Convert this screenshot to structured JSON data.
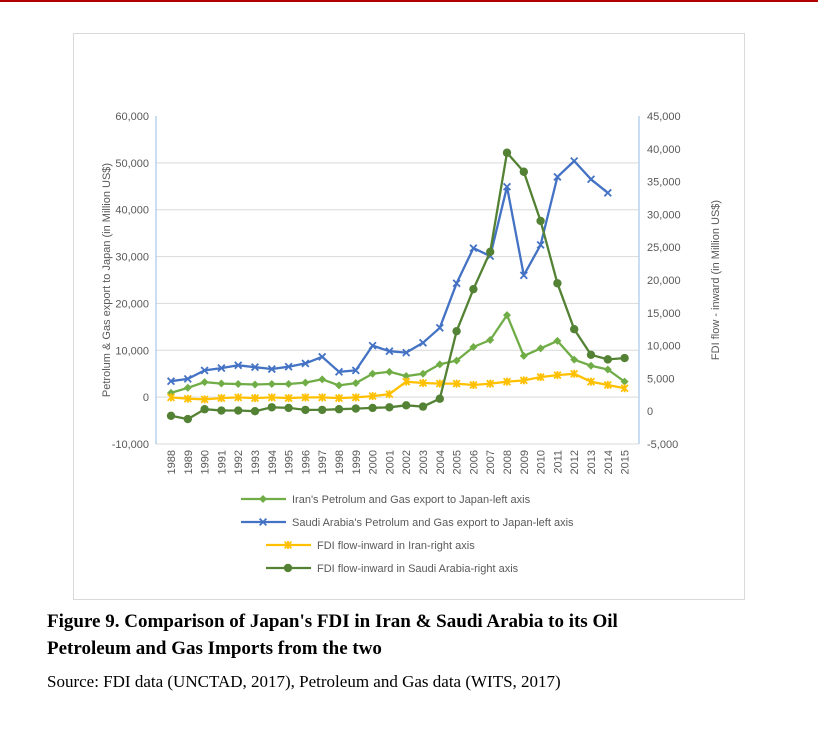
{
  "page": {
    "caption_line1": "Figure 9. Comparison of Japan's FDI in Iran & Saudi Arabia to its Oil",
    "caption_line2": "Petroleum and Gas Imports from the two",
    "source": "Source: FDI data (UNCTAD, 2017), Petroleum and Gas data (WITS, 2017)"
  },
  "colors": {
    "iran_export_green": "#70AD47",
    "saudi_export_blue": "#4472C4",
    "iran_fdi_yellow": "#FFC000",
    "saudi_fdi_darkgreen": "#548235",
    "gridline_gray": "#D9D9D9",
    "axis_line_blue": "#AECBEA",
    "axis_text_gray": "#595959",
    "frame_border": "#D9D9D9",
    "top_rule_red": "#B00000"
  },
  "chart_data": {
    "type": "line",
    "title": "",
    "grid": true,
    "legend_position": "bottom",
    "x": [
      1988,
      1989,
      1990,
      1991,
      1992,
      1993,
      1994,
      1995,
      1996,
      1997,
      1998,
      1999,
      2000,
      2001,
      2002,
      2003,
      2004,
      2005,
      2006,
      2007,
      2008,
      2009,
      2010,
      2011,
      2012,
      2013,
      2014,
      2015
    ],
    "left_axis": {
      "title": "Petrolum & Gas export to Japan (in Million US$)",
      "min": -10000,
      "max": 60000,
      "tick_interval": 10000,
      "tick_labels": [
        "60,000",
        "50,000",
        "40,000",
        "30,000",
        "20,000",
        "10,000",
        "0",
        "-10,000"
      ]
    },
    "right_axis": {
      "title": "FDI flow - inward (in Million US$)",
      "min": -5000,
      "max": 45000,
      "tick_interval": 5000,
      "tick_labels": [
        "45,000",
        "40,000",
        "35,000",
        "30,000",
        "25,000",
        "20,000",
        "15,000",
        "10,000",
        "5,000",
        "0",
        "-5,000"
      ]
    },
    "series": [
      {
        "name": "Iran's Petrolum and Gas export to Japan-left axis",
        "axis": "left",
        "color": "#70AD47",
        "marker": "diamond",
        "values": [
          900,
          2000,
          3200,
          2900,
          2800,
          2700,
          2800,
          2800,
          3100,
          3800,
          2500,
          3000,
          5000,
          5400,
          4500,
          5000,
          7000,
          7800,
          10700,
          12200,
          17500,
          8800,
          10400,
          12000,
          8000,
          6700,
          5900,
          3300
        ]
      },
      {
        "name": "Saudi Arabia's Petrolum and Gas export to Japan-left axis",
        "axis": "left",
        "color": "#4472C4",
        "marker": "x",
        "values": [
          3400,
          3900,
          5700,
          6200,
          6800,
          6400,
          6000,
          6500,
          7200,
          8600,
          5400,
          5700,
          11000,
          9800,
          9500,
          11600,
          14800,
          24300,
          31800,
          30100,
          44900,
          26000,
          32500,
          47000,
          50400,
          46500,
          43600,
          null
        ]
      },
      {
        "name": "FDI flow-inward in Iran-right axis",
        "axis": "right",
        "color": "#FFC000",
        "marker": "asterisk",
        "values": [
          2100,
          1900,
          1800,
          2000,
          2100,
          2000,
          2100,
          2000,
          2100,
          2100,
          2000,
          2100,
          2300,
          2600,
          4500,
          4300,
          4200,
          4200,
          4000,
          4200,
          4500,
          4700,
          5200,
          5500,
          5700,
          4500,
          4000,
          3500
        ]
      },
      {
        "name": "FDI flow-inward in Saudi Arabia-right axis",
        "axis": "right",
        "color": "#548235",
        "marker": "circle",
        "values": [
          -700,
          -1200,
          300,
          100,
          100,
          0,
          600,
          500,
          200,
          200,
          300,
          400,
          500,
          600,
          900,
          700,
          1900,
          12200,
          18600,
          24300,
          39400,
          36500,
          29000,
          19500,
          12500,
          8600,
          7900,
          8100
        ]
      }
    ]
  }
}
